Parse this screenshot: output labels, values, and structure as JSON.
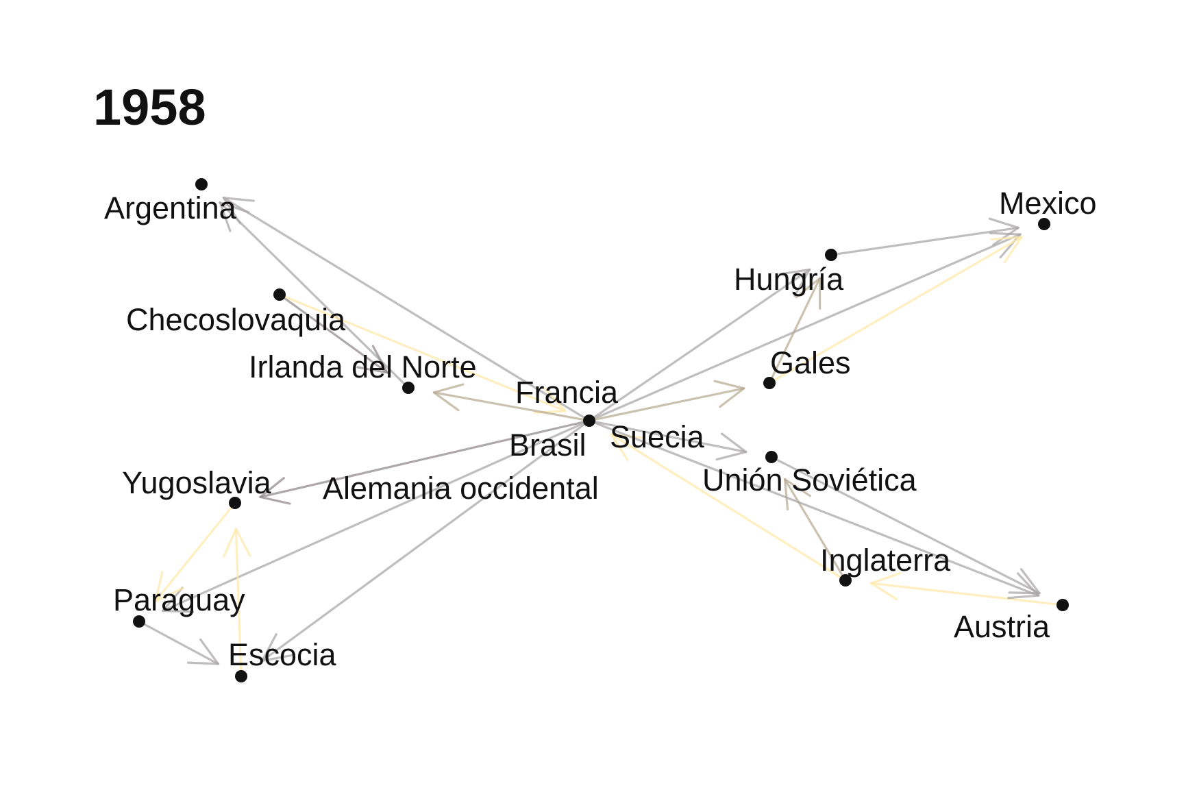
{
  "title": "1958",
  "colors": {
    "gray": "#a6a3a3",
    "yellow": "#ffe9a8",
    "mixed": "#b7a990",
    "dark": "#8f8789",
    "black": "#000000"
  },
  "nodes": [
    {
      "id": "argentina",
      "label": "Argentina"
    },
    {
      "id": "checoslovaquia",
      "label": "Checoslovaquia"
    },
    {
      "id": "irlanda",
      "label": "Irlanda del Norte"
    },
    {
      "id": "francia",
      "label": "Francia"
    },
    {
      "id": "brasil",
      "label": "Brasil"
    },
    {
      "id": "suecia",
      "label": "Suecia"
    },
    {
      "id": "alemania",
      "label": "Alemania occidental"
    },
    {
      "id": "yugoslavia",
      "label": "Yugoslavia"
    },
    {
      "id": "paraguay",
      "label": "Paraguay"
    },
    {
      "id": "escocia",
      "label": "Escocia"
    },
    {
      "id": "mexico",
      "label": "Mexico"
    },
    {
      "id": "hungria",
      "label": "Hungría"
    },
    {
      "id": "gales",
      "label": "Gales"
    },
    {
      "id": "union",
      "label": "Unión Soviética"
    },
    {
      "id": "inglaterra",
      "label": "Inglaterra"
    },
    {
      "id": "austria",
      "label": "Austria"
    }
  ],
  "edges": [
    {
      "from": "hungria",
      "to": "mexico",
      "color": "gray"
    },
    {
      "from": "francia",
      "to": "mexico",
      "color": "gray"
    },
    {
      "from": "gales",
      "to": "mexico",
      "color": "yellow"
    },
    {
      "from": "francia",
      "to": "hungria",
      "color": "gray"
    },
    {
      "from": "gales",
      "to": "hungria",
      "color": "mixed"
    },
    {
      "from": "francia",
      "to": "gales",
      "color": "mixed"
    },
    {
      "from": "francia",
      "to": "argentina",
      "color": "gray"
    },
    {
      "from": "irlanda",
      "to": "argentina",
      "color": "gray"
    },
    {
      "from": "checoslovaquia",
      "to": "irlanda",
      "color": "dark"
    },
    {
      "from": "checoslovaquia",
      "to": "francia",
      "color": "yellow"
    },
    {
      "from": "francia",
      "to": "irlanda",
      "color": "mixed"
    },
    {
      "from": "francia",
      "to": "union",
      "color": "gray"
    },
    {
      "from": "inglaterra",
      "to": "francia",
      "color": "yellow"
    },
    {
      "from": "inglaterra",
      "to": "union",
      "color": "mixed"
    },
    {
      "from": "union",
      "to": "austria",
      "color": "gray"
    },
    {
      "from": "austria",
      "to": "inglaterra",
      "color": "yellow"
    },
    {
      "from": "francia",
      "to": "austria",
      "color": "gray"
    },
    {
      "from": "francia",
      "to": "yugoslavia",
      "color": "dark"
    },
    {
      "from": "paraguay",
      "to": "escocia",
      "color": "gray"
    },
    {
      "from": "francia",
      "to": "paraguay",
      "color": "gray"
    },
    {
      "from": "francia",
      "to": "escocia",
      "color": "gray"
    },
    {
      "from": "yugoslavia",
      "to": "paraguay",
      "color": "yellow"
    },
    {
      "from": "escocia",
      "to": "yugoslavia",
      "color": "yellow"
    },
    {
      "from": "brasil",
      "to": "francia",
      "color": "black",
      "plain": true
    }
  ]
}
